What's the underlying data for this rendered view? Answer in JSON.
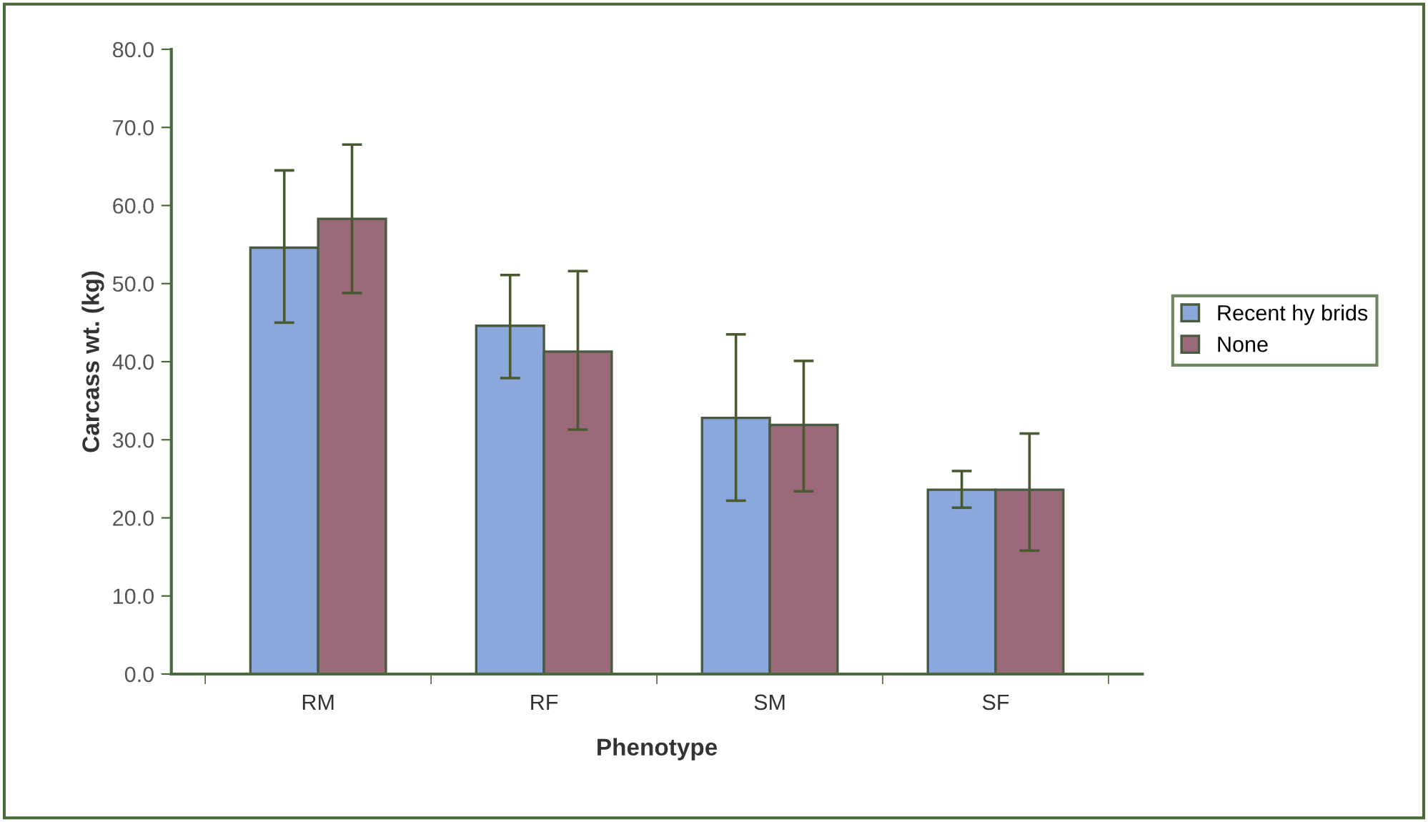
{
  "chart_data": {
    "type": "bar",
    "xlabel": "Phenotype",
    "ylabel": "Carcass wt. (kg)",
    "categories": [
      "RM",
      "RF",
      "SM",
      "SF"
    ],
    "series": [
      {
        "name": "Recent hy brids",
        "color": "#8aa8dc",
        "values": [
          54.6,
          44.6,
          32.8,
          23.6
        ],
        "errors": [
          [
            45.0,
            64.5
          ],
          [
            37.9,
            51.1
          ],
          [
            22.2,
            43.5
          ],
          [
            21.3,
            26.0
          ]
        ]
      },
      {
        "name": "None",
        "color": "#9a6a7a",
        "values": [
          58.3,
          41.3,
          31.9,
          23.6
        ],
        "errors": [
          [
            48.8,
            67.8
          ],
          [
            31.3,
            51.6
          ],
          [
            23.4,
            40.1
          ],
          [
            15.8,
            30.8
          ]
        ]
      }
    ],
    "ylim": [
      0,
      80
    ],
    "yticks": [
      {
        "value": 0,
        "label": "0.0"
      },
      {
        "value": 10,
        "label": "10.0"
      },
      {
        "value": 20,
        "label": "20.0"
      },
      {
        "value": 30,
        "label": "30.0"
      },
      {
        "value": 40,
        "label": "40.0"
      },
      {
        "value": 50,
        "label": "50.0"
      },
      {
        "value": 60,
        "label": "60.0"
      },
      {
        "value": 70,
        "label": "70.0"
      },
      {
        "value": 80,
        "label": "80.0"
      }
    ],
    "grid": false,
    "legend": "right"
  }
}
